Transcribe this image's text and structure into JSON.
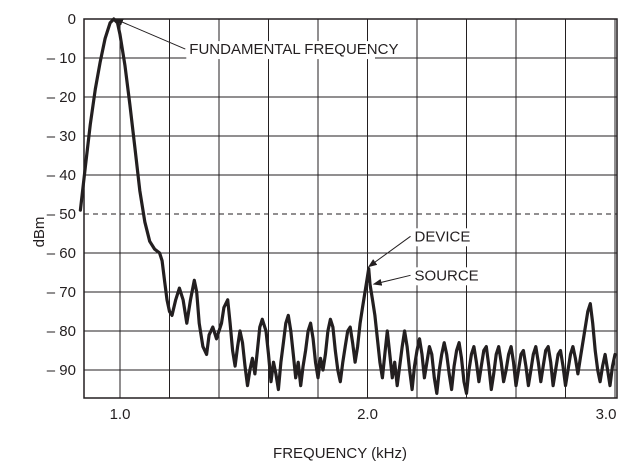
{
  "chart_data": {
    "type": "line",
    "title": "",
    "xlabel": "FREQUENCY (kHz)",
    "ylabel": "dBm",
    "xlim": [
      0.84,
      3.0
    ],
    "ylim": [
      -100,
      0
    ],
    "grid": true,
    "x_ticks": [
      {
        "value": 1.0,
        "label": "1.0"
      },
      {
        "value": 2.0,
        "label": "2.0"
      },
      {
        "value": 3.0,
        "label": "3.0"
      }
    ],
    "x_grid_values": [
      1.0,
      1.2,
      1.4,
      1.6,
      1.8,
      2.0,
      2.2,
      2.4,
      2.6,
      2.8,
      3.0
    ],
    "y_ticks": [
      {
        "value": 0,
        "label": "0"
      },
      {
        "value": -10,
        "label": "– 10"
      },
      {
        "value": -20,
        "label": "– 20"
      },
      {
        "value": -30,
        "label": "– 30"
      },
      {
        "value": -40,
        "label": "– 40"
      },
      {
        "value": -50,
        "label": "– 50"
      },
      {
        "value": -60,
        "label": "– 60"
      },
      {
        "value": -70,
        "label": "– 70"
      },
      {
        "value": -80,
        "label": "– 80"
      },
      {
        "value": -90,
        "label": "– 90"
      }
    ],
    "reference_lines": [
      {
        "axis": "y",
        "value": -50,
        "style": "dashed"
      },
      {
        "axis": "x",
        "value": 2.0,
        "style": "dashed"
      }
    ],
    "series": [
      {
        "color": "#231f20",
        "points": [
          [
            0.84,
            -49
          ],
          [
            0.86,
            -38
          ],
          [
            0.88,
            -27
          ],
          [
            0.9,
            -18
          ],
          [
            0.92,
            -11
          ],
          [
            0.94,
            -5
          ],
          [
            0.96,
            -1
          ],
          [
            0.975,
            0
          ],
          [
            0.99,
            -1
          ],
          [
            1.0,
            -4
          ],
          [
            1.02,
            -12
          ],
          [
            1.04,
            -22
          ],
          [
            1.06,
            -33
          ],
          [
            1.08,
            -44
          ],
          [
            1.1,
            -52
          ],
          [
            1.12,
            -57
          ],
          [
            1.14,
            -59
          ],
          [
            1.16,
            -60
          ],
          [
            1.17,
            -62
          ],
          [
            1.18,
            -67
          ],
          [
            1.19,
            -72
          ],
          [
            1.2,
            -75
          ],
          [
            1.21,
            -76
          ],
          [
            1.225,
            -72
          ],
          [
            1.24,
            -69
          ],
          [
            1.255,
            -72
          ],
          [
            1.27,
            -78
          ],
          [
            1.285,
            -72
          ],
          [
            1.3,
            -67
          ],
          [
            1.31,
            -70
          ],
          [
            1.32,
            -78
          ],
          [
            1.335,
            -84
          ],
          [
            1.35,
            -86
          ],
          [
            1.36,
            -81
          ],
          [
            1.375,
            -79
          ],
          [
            1.39,
            -82
          ],
          [
            1.41,
            -78
          ],
          [
            1.42,
            -74
          ],
          [
            1.435,
            -72
          ],
          [
            1.445,
            -78
          ],
          [
            1.455,
            -85
          ],
          [
            1.465,
            -89
          ],
          [
            1.475,
            -84
          ],
          [
            1.485,
            -80
          ],
          [
            1.495,
            -83
          ],
          [
            1.505,
            -89
          ],
          [
            1.515,
            -94
          ],
          [
            1.525,
            -90
          ],
          [
            1.535,
            -87
          ],
          [
            1.545,
            -91
          ],
          [
            1.555,
            -85
          ],
          [
            1.565,
            -79
          ],
          [
            1.575,
            -77
          ],
          [
            1.59,
            -80
          ],
          [
            1.6,
            -86
          ],
          [
            1.61,
            -93
          ],
          [
            1.62,
            -88
          ],
          [
            1.63,
            -91
          ],
          [
            1.64,
            -95
          ],
          [
            1.65,
            -88
          ],
          [
            1.66,
            -83
          ],
          [
            1.67,
            -78
          ],
          [
            1.68,
            -76
          ],
          [
            1.69,
            -80
          ],
          [
            1.7,
            -86
          ],
          [
            1.71,
            -92
          ],
          [
            1.72,
            -88
          ],
          [
            1.73,
            -94
          ],
          [
            1.74,
            -89
          ],
          [
            1.75,
            -85
          ],
          [
            1.76,
            -80
          ],
          [
            1.77,
            -78
          ],
          [
            1.78,
            -82
          ],
          [
            1.79,
            -88
          ],
          [
            1.8,
            -92
          ],
          [
            1.81,
            -87
          ],
          [
            1.82,
            -90
          ],
          [
            1.83,
            -86
          ],
          [
            1.84,
            -80
          ],
          [
            1.85,
            -77
          ],
          [
            1.86,
            -79
          ],
          [
            1.87,
            -85
          ],
          [
            1.88,
            -90
          ],
          [
            1.89,
            -93
          ],
          [
            1.9,
            -88
          ],
          [
            1.91,
            -84
          ],
          [
            1.92,
            -80
          ],
          [
            1.93,
            -79
          ],
          [
            1.94,
            -83
          ],
          [
            1.95,
            -88
          ],
          [
            1.96,
            -84
          ],
          [
            1.97,
            -78
          ],
          [
            1.98,
            -74
          ],
          [
            1.99,
            -70
          ],
          [
            2.0,
            -66
          ],
          [
            2.005,
            -64
          ],
          [
            2.01,
            -68
          ],
          [
            2.02,
            -72
          ],
          [
            2.03,
            -76
          ],
          [
            2.04,
            -82
          ],
          [
            2.05,
            -88
          ],
          [
            2.06,
            -92
          ],
          [
            2.07,
            -86
          ],
          [
            2.08,
            -80
          ],
          [
            2.09,
            -86
          ],
          [
            2.1,
            -92
          ],
          [
            2.11,
            -88
          ],
          [
            2.12,
            -94
          ],
          [
            2.13,
            -89
          ],
          [
            2.14,
            -84
          ],
          [
            2.15,
            -80
          ],
          [
            2.16,
            -84
          ],
          [
            2.17,
            -90
          ],
          [
            2.18,
            -95
          ],
          [
            2.19,
            -89
          ],
          [
            2.2,
            -85
          ],
          [
            2.21,
            -82
          ],
          [
            2.22,
            -86
          ],
          [
            2.23,
            -92
          ],
          [
            2.24,
            -88
          ],
          [
            2.25,
            -84
          ],
          [
            2.26,
            -86
          ],
          [
            2.27,
            -92
          ],
          [
            2.28,
            -96
          ],
          [
            2.29,
            -90
          ],
          [
            2.3,
            -86
          ],
          [
            2.31,
            -83
          ],
          [
            2.32,
            -86
          ],
          [
            2.33,
            -91
          ],
          [
            2.34,
            -95
          ],
          [
            2.35,
            -89
          ],
          [
            2.36,
            -85
          ],
          [
            2.37,
            -83
          ],
          [
            2.38,
            -87
          ],
          [
            2.39,
            -93
          ],
          [
            2.4,
            -96
          ],
          [
            2.41,
            -90
          ],
          [
            2.42,
            -86
          ],
          [
            2.43,
            -84
          ],
          [
            2.44,
            -88
          ],
          [
            2.45,
            -93
          ],
          [
            2.46,
            -89
          ],
          [
            2.47,
            -85
          ],
          [
            2.48,
            -84
          ],
          [
            2.49,
            -89
          ],
          [
            2.5,
            -95
          ],
          [
            2.51,
            -91
          ],
          [
            2.52,
            -86
          ],
          [
            2.53,
            -84
          ],
          [
            2.54,
            -88
          ],
          [
            2.55,
            -93
          ],
          [
            2.56,
            -90
          ],
          [
            2.57,
            -86
          ],
          [
            2.58,
            -84
          ],
          [
            2.59,
            -88
          ],
          [
            2.6,
            -94
          ],
          [
            2.61,
            -90
          ],
          [
            2.62,
            -86
          ],
          [
            2.63,
            -85
          ],
          [
            2.64,
            -89
          ],
          [
            2.65,
            -94
          ],
          [
            2.66,
            -90
          ],
          [
            2.67,
            -86
          ],
          [
            2.68,
            -84
          ],
          [
            2.69,
            -88
          ],
          [
            2.7,
            -93
          ],
          [
            2.71,
            -89
          ],
          [
            2.72,
            -85
          ],
          [
            2.73,
            -84
          ],
          [
            2.74,
            -88
          ],
          [
            2.75,
            -94
          ],
          [
            2.76,
            -90
          ],
          [
            2.77,
            -86
          ],
          [
            2.78,
            -85
          ],
          [
            2.79,
            -89
          ],
          [
            2.8,
            -94
          ],
          [
            2.81,
            -90
          ],
          [
            2.82,
            -86
          ],
          [
            2.83,
            -84
          ],
          [
            2.84,
            -87
          ],
          [
            2.85,
            -91
          ],
          [
            2.86,
            -87
          ],
          [
            2.87,
            -83
          ],
          [
            2.88,
            -79
          ],
          [
            2.89,
            -75
          ],
          [
            2.9,
            -73
          ],
          [
            2.91,
            -78
          ],
          [
            2.92,
            -85
          ],
          [
            2.93,
            -90
          ],
          [
            2.94,
            -93
          ],
          [
            2.95,
            -89
          ],
          [
            2.96,
            -86
          ],
          [
            2.97,
            -90
          ],
          [
            2.98,
            -94
          ],
          [
            2.99,
            -89
          ],
          [
            3.0,
            -86
          ]
        ]
      }
    ],
    "annotations": [
      {
        "text": "FUNDAMENTAL FREQUENCY",
        "target": [
          0.98,
          0
        ],
        "text_at": [
          1.28,
          -9
        ]
      },
      {
        "text": "DEVICE",
        "target": [
          2.005,
          -63.5
        ],
        "text_at": [
          2.19,
          -57
        ]
      },
      {
        "text": "SOURCE",
        "target": [
          2.025,
          -68
        ],
        "text_at": [
          2.19,
          -67
        ]
      }
    ]
  }
}
